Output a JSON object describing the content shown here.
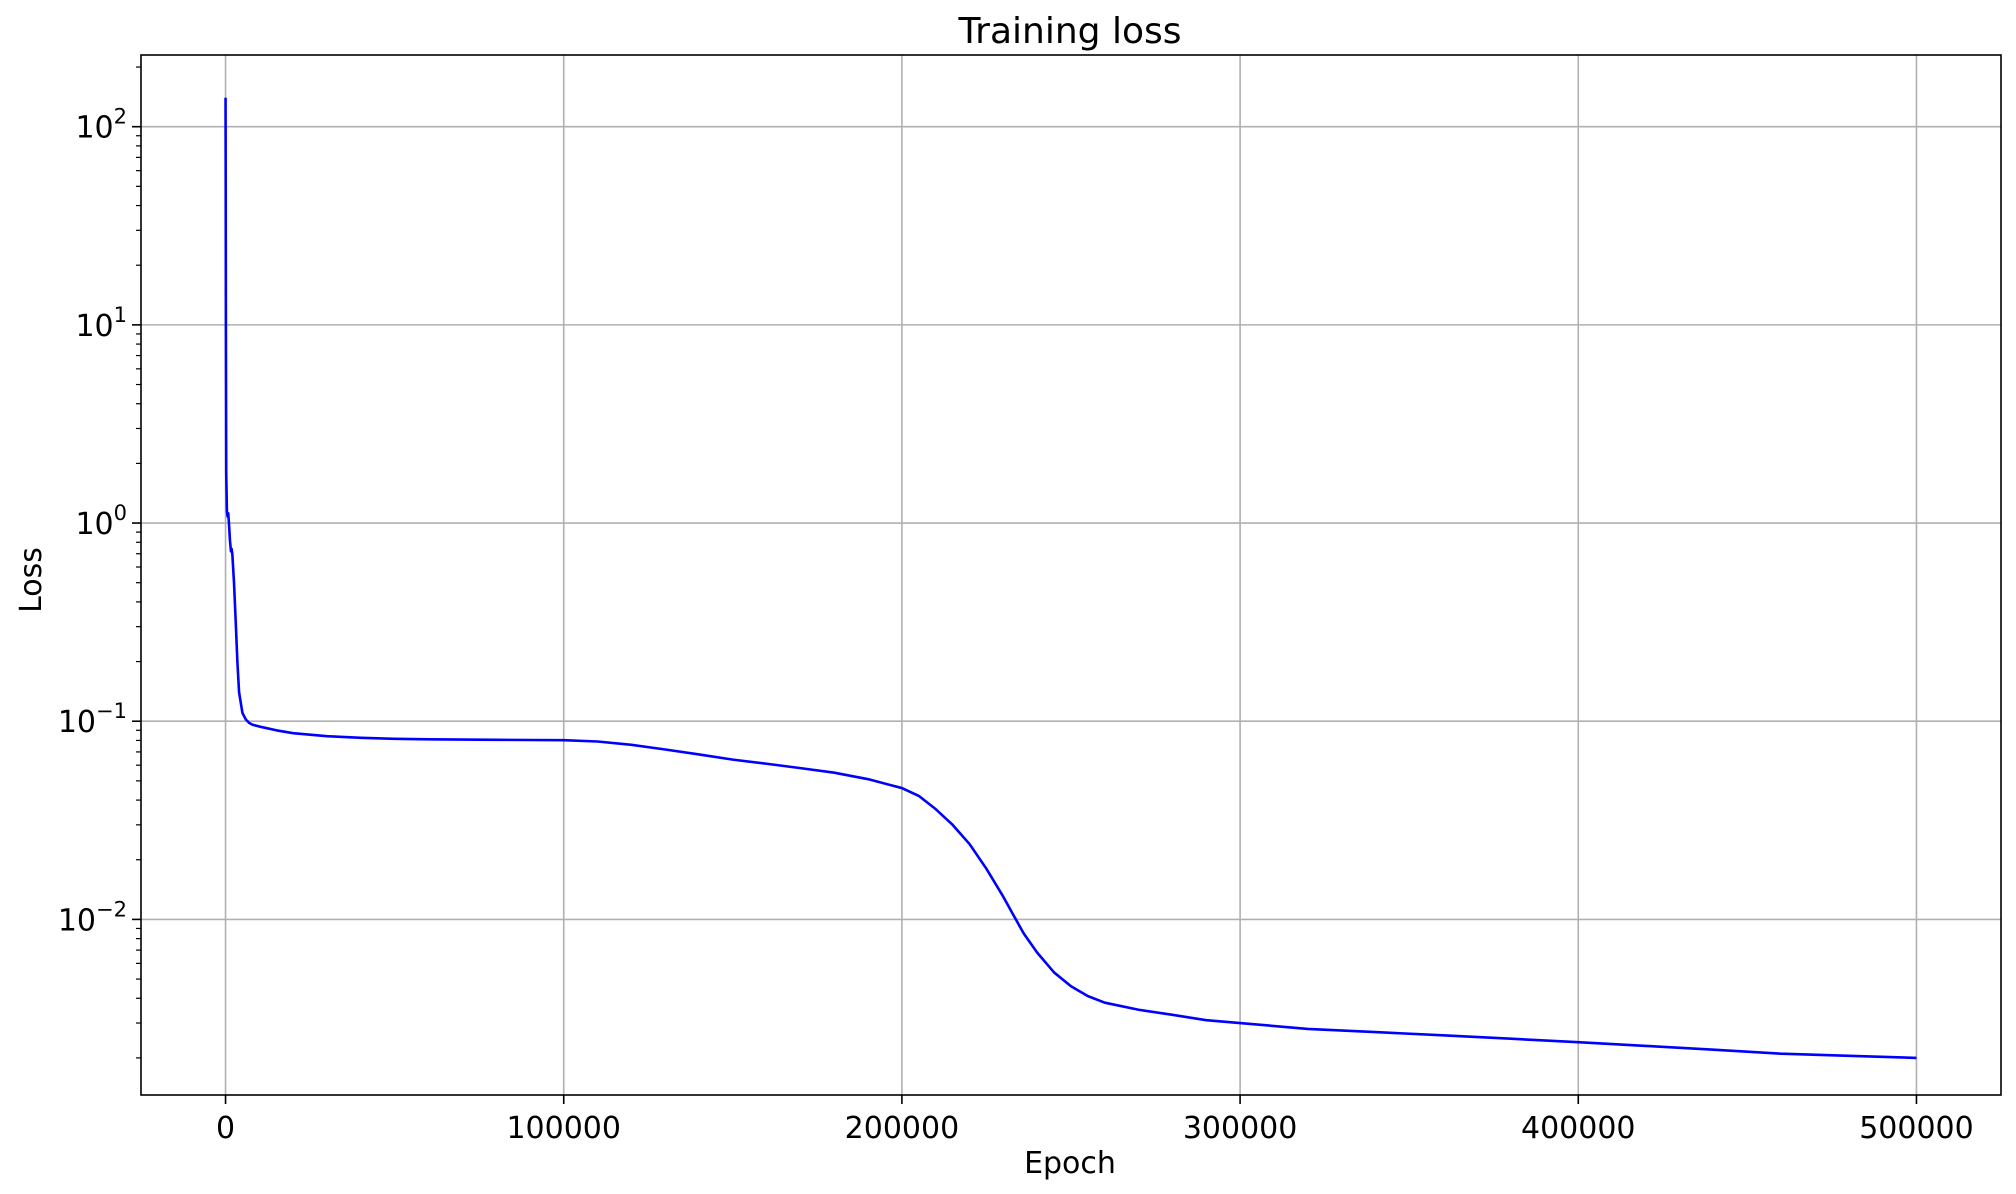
{
  "chart_data": {
    "type": "line",
    "title": "Training loss",
    "xlabel": "Epoch",
    "ylabel": "Loss",
    "yscale": "log",
    "xlim": [
      -25000,
      525000
    ],
    "ylim": [
      0.0013,
      230
    ],
    "grid": true,
    "line_color": "#0000ff",
    "grid_color": "#b0b0b0",
    "x_ticks": [
      0,
      100000,
      200000,
      300000,
      400000,
      500000
    ],
    "x_tick_labels": [
      "0",
      "100000",
      "200000",
      "300000",
      "400000",
      "500000"
    ],
    "y_ticks": [
      0.01,
      0.1,
      1,
      10,
      100
    ],
    "y_tick_labels": [
      {
        "base": "10",
        "exp": "−2"
      },
      {
        "base": "10",
        "exp": "−1"
      },
      {
        "base": "10",
        "exp": "0"
      },
      {
        "base": "10",
        "exp": "1"
      },
      {
        "base": "10",
        "exp": "2"
      }
    ],
    "series": [
      {
        "x": [
          0,
          50,
          100,
          200,
          400,
          600,
          800,
          1000,
          1300,
          1600,
          1800,
          2000,
          2500,
          3000,
          3500,
          4000,
          5000,
          6000,
          7000,
          8000,
          10000,
          15000,
          20000,
          30000,
          40000,
          50000,
          60000,
          70000,
          80000,
          90000,
          100000,
          110000,
          120000,
          130000,
          140000,
          150000,
          160000,
          170000,
          180000,
          190000,
          200000,
          205000,
          210000,
          215000,
          220000,
          225000,
          230000,
          233000,
          236000,
          240000,
          245000,
          250000,
          255000,
          260000,
          270000,
          280000,
          290000,
          300000,
          320000,
          340000,
          360000,
          380000,
          400000,
          420000,
          440000,
          460000,
          480000,
          500000
        ],
        "y": [
          140,
          50,
          10,
          1.8,
          1.15,
          1.08,
          1.12,
          1.0,
          0.82,
          0.72,
          0.74,
          0.7,
          0.5,
          0.32,
          0.2,
          0.14,
          0.11,
          0.102,
          0.098,
          0.096,
          0.094,
          0.09,
          0.087,
          0.084,
          0.0825,
          0.0815,
          0.081,
          0.0808,
          0.0806,
          0.0804,
          0.0802,
          0.079,
          0.076,
          0.072,
          0.068,
          0.064,
          0.061,
          0.058,
          0.055,
          0.051,
          0.046,
          0.042,
          0.036,
          0.03,
          0.024,
          0.018,
          0.013,
          0.0105,
          0.0085,
          0.0068,
          0.0054,
          0.0046,
          0.0041,
          0.0038,
          0.0035,
          0.0033,
          0.0031,
          0.003,
          0.0028,
          0.0027,
          0.0026,
          0.0025,
          0.0024,
          0.0023,
          0.0022,
          0.0021,
          0.00205,
          0.002
        ]
      }
    ]
  }
}
